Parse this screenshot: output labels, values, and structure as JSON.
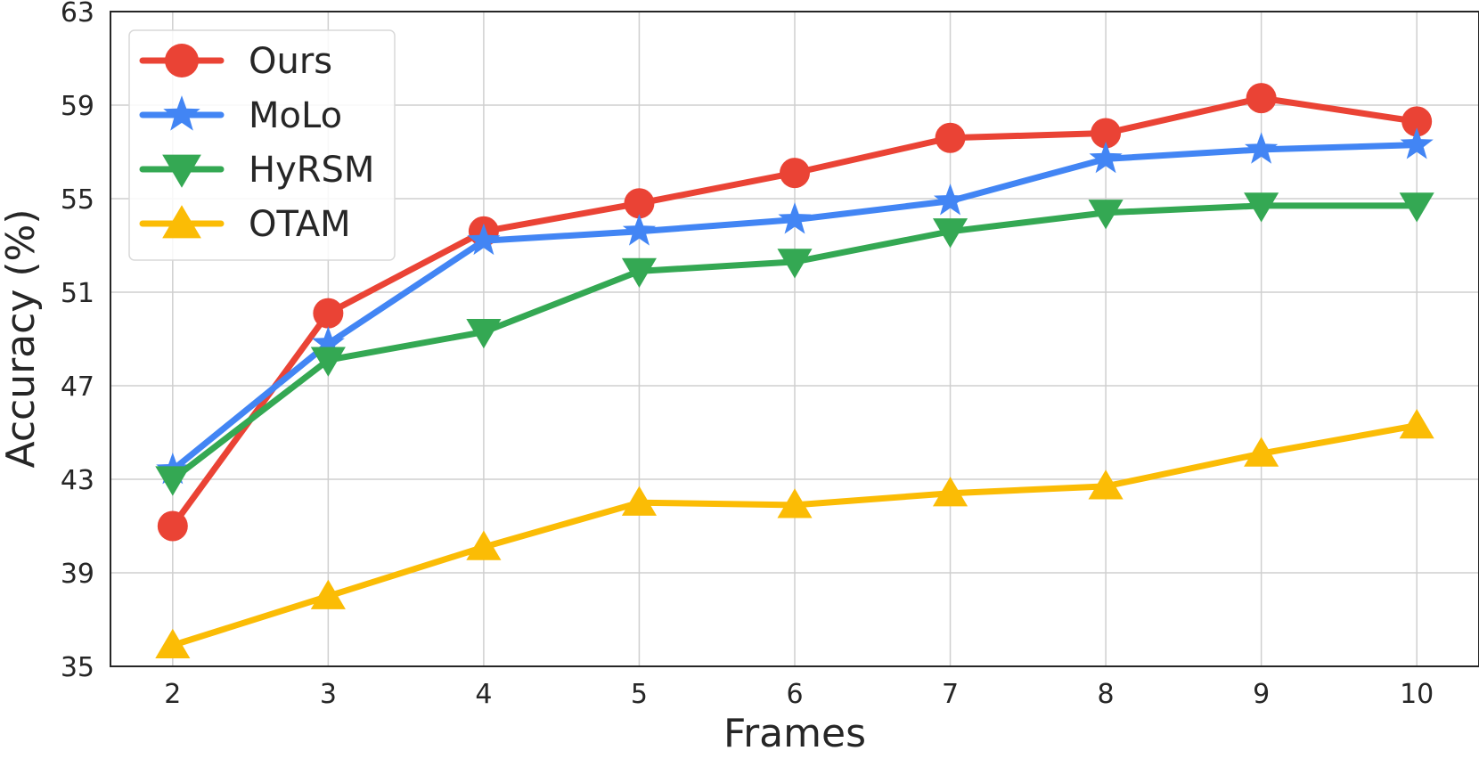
{
  "chart_data": {
    "type": "line",
    "xlabel": "Frames",
    "ylabel": "Accuracy (%)",
    "x": [
      2,
      3,
      4,
      5,
      6,
      7,
      8,
      9,
      10
    ],
    "ylim": [
      35,
      63
    ],
    "yticks": [
      35,
      39,
      43,
      47,
      51,
      55,
      59,
      63
    ],
    "xlim": [
      1.6,
      10.4
    ],
    "grid": true,
    "legend_position": "top-left",
    "series": [
      {
        "name": "Ours",
        "color": "#EA4335",
        "marker": "circle",
        "values": [
          41.0,
          50.1,
          53.6,
          54.8,
          56.1,
          57.6,
          57.8,
          59.3,
          58.3
        ]
      },
      {
        "name": "MoLo",
        "color": "#4285F4",
        "marker": "star",
        "values": [
          43.4,
          48.8,
          53.2,
          53.6,
          54.1,
          54.9,
          56.7,
          57.1,
          57.3
        ]
      },
      {
        "name": "HyRSM",
        "color": "#34A853",
        "marker": "triangle-down",
        "values": [
          43.0,
          48.1,
          49.3,
          51.9,
          52.3,
          53.6,
          54.4,
          54.7,
          54.7
        ]
      },
      {
        "name": "OTAM",
        "color": "#FBBC05",
        "marker": "triangle-up",
        "values": [
          35.9,
          38.0,
          40.1,
          42.0,
          41.9,
          42.4,
          42.7,
          44.1,
          45.3
        ]
      }
    ]
  }
}
